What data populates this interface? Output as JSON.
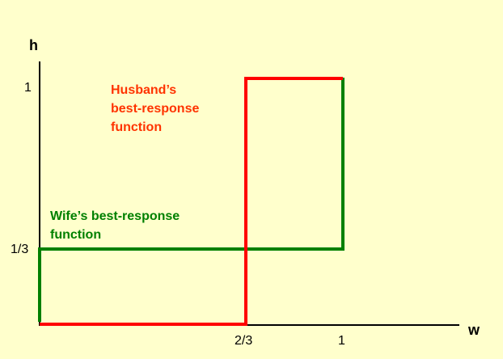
{
  "axes": {
    "x_label": "w",
    "y_label": "h",
    "x_ticks": [
      "2/3",
      "1"
    ],
    "y_ticks": [
      "1",
      "1/3"
    ]
  },
  "colors": {
    "background": "#ffffcc",
    "axis": "#000000",
    "husband": "#ff0000",
    "wife": "#008000",
    "husband_text": "#ff3300",
    "wife_text": "#008000"
  },
  "annotations": {
    "husband": [
      "Husband’s",
      "best-response",
      "function"
    ],
    "wife": [
      "Wife’s best-response",
      "function"
    ]
  }
}
